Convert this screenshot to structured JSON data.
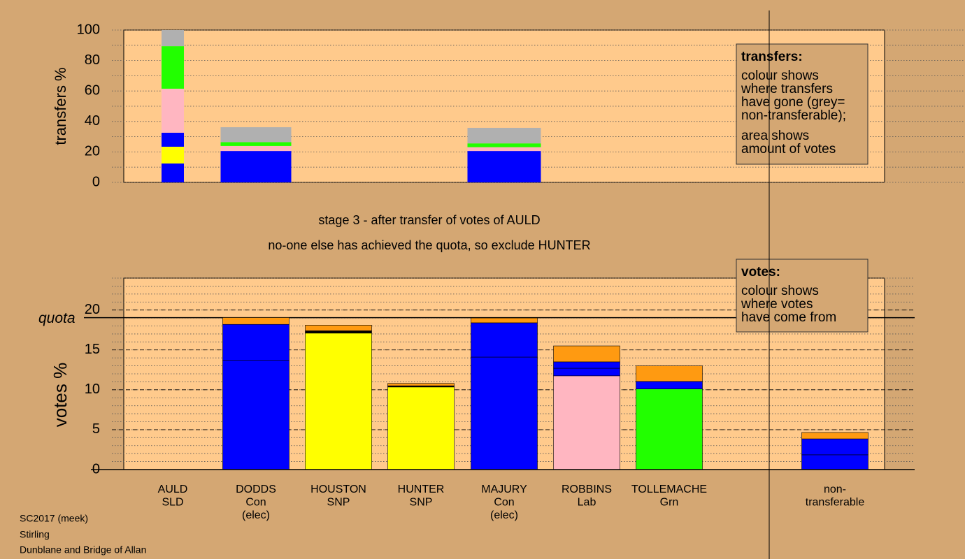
{
  "chart_data": [
    {
      "type": "bar",
      "stacked": true,
      "ylabel": "transfers %",
      "ylim": [
        0,
        100
      ],
      "yticks": [
        0,
        20,
        40,
        60,
        80,
        100
      ],
      "grid": true,
      "grid_style": "dotted",
      "gridlines": [
        0,
        10,
        20,
        30,
        40,
        50,
        60,
        70,
        80,
        90,
        100
      ],
      "stacks": [
        [
          {
            "color": "#0000ff",
            "value": 12.4
          },
          {
            "color": "#ffff00",
            "value": 11
          },
          {
            "color": "#0000ff",
            "value": 9.2
          },
          {
            "color": "#ffb6c1",
            "value": 28.9
          },
          {
            "color": "#22ff00",
            "value": 27.9
          },
          {
            "color": "#b0b0b0",
            "value": 10.6
          }
        ],
        [
          {
            "color": "#0000ff",
            "value": 20.6
          },
          {
            "color": "#ffb6c1",
            "value": 3.3
          },
          {
            "color": "#22ff00",
            "value": 2.5
          },
          {
            "color": "#b0b0b0",
            "value": 9.8
          }
        ],
        null,
        null,
        [
          {
            "color": "#0000ff",
            "value": 20.6
          },
          {
            "color": "#ffb6c1",
            "value": 2.5
          },
          {
            "color": "#22ff00",
            "value": 2.5
          },
          {
            "color": "#b0b0b0",
            "value": 10.2
          }
        ],
        null,
        null,
        null
      ],
      "legend": {
        "heading": "transfers:",
        "paragraphs": [
          [
            "colour shows",
            "where transfers",
            "have gone (grey=",
            "non-transferable);"
          ],
          [
            "area shows",
            "amount of votes"
          ]
        ]
      }
    },
    {
      "type": "bar",
      "stacked": true,
      "ylabel": "votes %",
      "ylim": [
        0,
        24
      ],
      "yticks": [
        0,
        5,
        10,
        15,
        20
      ],
      "grid": true,
      "grid_style": "dashed",
      "gridlines": [
        0,
        1,
        2,
        3,
        4,
        5,
        6,
        7,
        8,
        9,
        10,
        11,
        12,
        13,
        14,
        15,
        16,
        17,
        18,
        19,
        20,
        21,
        22,
        23,
        24
      ],
      "quota": {
        "label": "quota",
        "value": 19.04
      },
      "categories": [
        [
          "AULD",
          "SLD"
        ],
        [
          "DODDS",
          "Con",
          "(elec)"
        ],
        [
          "HOUSTON",
          "SNP"
        ],
        [
          "HUNTER",
          "SNP"
        ],
        [
          "MAJURY",
          "Con",
          "(elec)"
        ],
        [
          "ROBBINS",
          "Lab"
        ],
        [
          "TOLLEMACHE",
          "Grn"
        ],
        [
          "non-",
          "transferable"
        ]
      ],
      "stacks": [
        null,
        [
          {
            "color": "#0000ff",
            "value": 13.7
          },
          {
            "color": "#0000ff",
            "value": 4.5
          },
          {
            "color": "#ff9a11",
            "value": 0.85
          }
        ],
        [
          {
            "color": "#ffff00",
            "value": 17.1
          },
          {
            "color": "#000000",
            "value": 0.3
          },
          {
            "color": "#ff9a11",
            "value": 0.7
          }
        ],
        [
          {
            "color": "#ffff00",
            "value": 10.35
          },
          {
            "color": "#000000",
            "value": 0.15
          },
          {
            "color": "#ff9a11",
            "value": 0.3
          }
        ],
        [
          {
            "color": "#0000ff",
            "value": 14.1
          },
          {
            "color": "#0000ff",
            "value": 4.3
          },
          {
            "color": "#ff9a11",
            "value": 0.6
          }
        ],
        [
          {
            "color": "#ffb6c1",
            "value": 11.75
          },
          {
            "color": "#0000ff",
            "value": 0.95
          },
          {
            "color": "#0000ff",
            "value": 0.8
          },
          {
            "color": "#ff9a11",
            "value": 2.0
          }
        ],
        [
          {
            "color": "#22ff00",
            "value": 10.1
          },
          {
            "color": "#0000ff",
            "value": 0.95
          },
          {
            "color": "#ff9a11",
            "value": 1.95
          }
        ],
        [
          {
            "color": "#0000ff",
            "value": 1.85
          },
          {
            "color": "#0000ff",
            "value": 2.0
          },
          {
            "color": "#ff9a11",
            "value": 0.8
          }
        ]
      ],
      "legend": {
        "heading": "votes:",
        "paragraphs": [
          [
            "colour shows",
            "where votes",
            "have come from"
          ]
        ]
      }
    }
  ],
  "stage_text": [
    "stage 3 - after transfer of votes of AULD",
    "no-one else has achieved the quota, so exclude HUNTER"
  ],
  "footer": [
    "SC2017 (meek)",
    "Stirling",
    "Dunblane and Bridge of Allan"
  ]
}
